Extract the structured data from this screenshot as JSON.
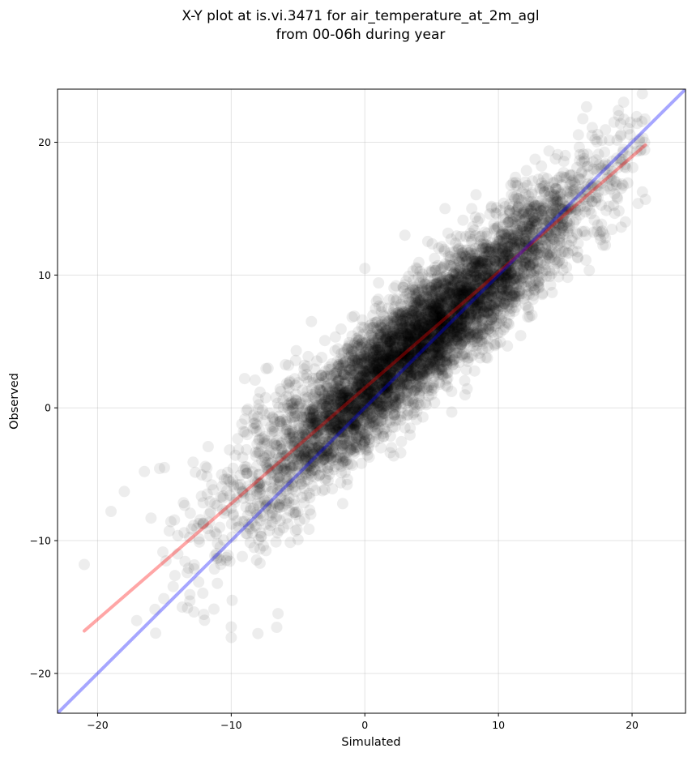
{
  "chart_data": {
    "type": "scatter",
    "title": [
      "X-Y plot at is.vi.3471 for air_temperature_at_2m_agl",
      "from 00-06h during year"
    ],
    "xlabel": "Simulated",
    "ylabel": "Observed",
    "xlim": [
      -23,
      24
    ],
    "ylim": [
      -23,
      24
    ],
    "xticks": [
      -20,
      -10,
      0,
      10,
      20
    ],
    "yticks": [
      -20,
      -10,
      0,
      10,
      20
    ],
    "xtick_labels": [
      "−20",
      "−10",
      "0",
      "10",
      "20"
    ],
    "ytick_labels": [
      "−20",
      "−10",
      "0",
      "10",
      "20"
    ],
    "grid": true,
    "points": {
      "color": "#000000",
      "opacity": 0.07,
      "approx_count": 6000,
      "distribution": {
        "x_range": [
          -21,
          21
        ],
        "trend_slope": 0.87,
        "trend_intercept": 1.5,
        "scatter_sd": 2.2,
        "sample_points": [
          [
            -21,
            -11.8
          ],
          [
            -19,
            -7.8
          ],
          [
            -18,
            -6.3
          ],
          [
            -16.5,
            -4.8
          ],
          [
            -16,
            -8.3
          ],
          [
            -15,
            -4.5
          ],
          [
            -14,
            -11
          ],
          [
            -12,
            -16
          ],
          [
            -10,
            -17.3
          ],
          [
            -10,
            -16.5
          ],
          [
            -8,
            -17
          ],
          [
            -6.5,
            -15.5
          ],
          [
            -9,
            2.2
          ],
          [
            -4,
            6.5
          ],
          [
            0,
            10.5
          ],
          [
            3,
            13
          ],
          [
            6,
            15
          ],
          [
            8,
            15
          ],
          [
            12,
            17
          ],
          [
            15,
            19
          ],
          [
            17,
            20.5
          ],
          [
            19,
            22
          ],
          [
            21,
            15.7
          ],
          [
            19.5,
            14
          ],
          [
            18,
            12.8
          ],
          [
            11,
            7.5
          ],
          [
            7,
            5
          ],
          [
            5,
            1
          ],
          [
            3,
            -1.5
          ],
          [
            2,
            -3
          ]
        ]
      }
    },
    "lines": [
      {
        "name": "",
        "color": "#ff0000",
        "opacity": 0.35,
        "x": [
          -21,
          21
        ],
        "y": [
          -16.8,
          19.8
        ]
      },
      {
        "name": "",
        "color": "#0000ff",
        "opacity": 0.35,
        "x": [
          -23,
          24
        ],
        "y": [
          -23,
          24
        ]
      }
    ]
  }
}
